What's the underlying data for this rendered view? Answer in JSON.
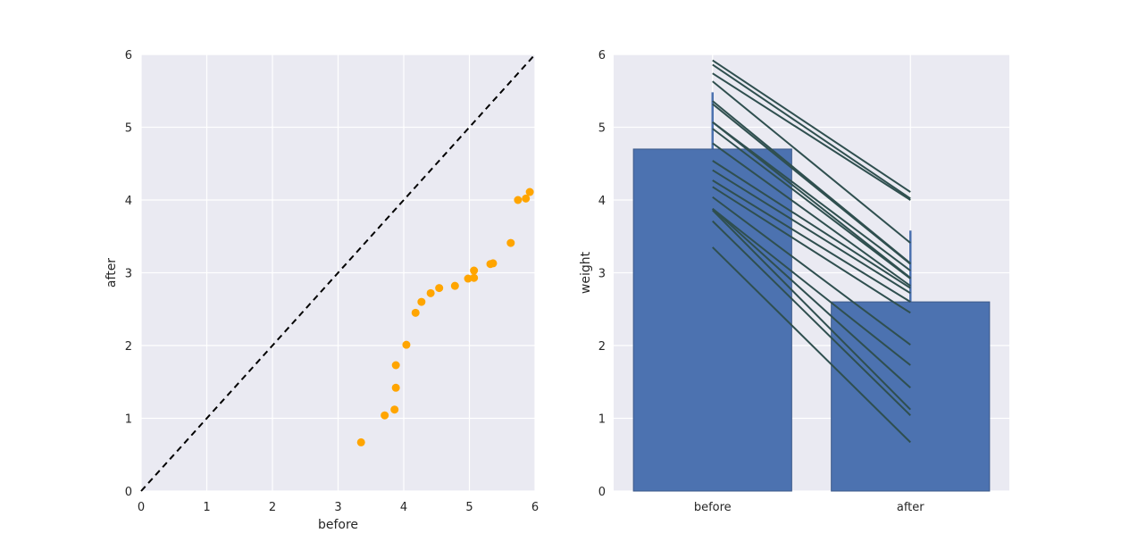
{
  "colors": {
    "background": "#EAEAF2",
    "grid": "#FFFFFF",
    "scatter": "#FFA500",
    "bar": "#4C72B0",
    "pair_line": "#2F4F4F",
    "identity_line": "#000000"
  },
  "chart_data": [
    {
      "type": "scatter",
      "xlabel": "before",
      "ylabel": "after",
      "xlim": [
        0,
        6
      ],
      "ylim": [
        0,
        6
      ],
      "xticks": [
        "0",
        "1",
        "2",
        "3",
        "4",
        "5",
        "6"
      ],
      "yticks": [
        "0",
        "1",
        "2",
        "3",
        "4",
        "5",
        "6"
      ],
      "grid": true,
      "reference_line": {
        "style": "dashed",
        "from": [
          0,
          0
        ],
        "to": [
          6,
          6
        ]
      },
      "points": [
        {
          "x": 3.35,
          "y": 0.67
        },
        {
          "x": 3.71,
          "y": 1.04
        },
        {
          "x": 3.86,
          "y": 1.12
        },
        {
          "x": 3.88,
          "y": 1.42
        },
        {
          "x": 3.88,
          "y": 1.73
        },
        {
          "x": 4.04,
          "y": 2.01
        },
        {
          "x": 4.18,
          "y": 2.45
        },
        {
          "x": 4.27,
          "y": 2.6
        },
        {
          "x": 4.41,
          "y": 2.72
        },
        {
          "x": 4.54,
          "y": 2.79
        },
        {
          "x": 4.78,
          "y": 2.82
        },
        {
          "x": 4.98,
          "y": 2.92
        },
        {
          "x": 5.07,
          "y": 2.93
        },
        {
          "x": 5.07,
          "y": 3.03
        },
        {
          "x": 5.32,
          "y": 3.12
        },
        {
          "x": 5.36,
          "y": 3.13
        },
        {
          "x": 5.63,
          "y": 3.41
        },
        {
          "x": 5.74,
          "y": 4.0
        },
        {
          "x": 5.86,
          "y": 4.02
        },
        {
          "x": 5.92,
          "y": 4.11
        }
      ]
    },
    {
      "type": "bar",
      "categories": [
        "before",
        "after"
      ],
      "values": [
        4.7,
        2.6
      ],
      "error_upper": [
        5.48,
        3.58
      ],
      "ylabel": "weight",
      "ylim": [
        0,
        6
      ],
      "yticks": [
        "0",
        "1",
        "2",
        "3",
        "4",
        "5",
        "6"
      ],
      "grid": true,
      "paired_lines": "each point of the scatter connected from before to after"
    }
  ]
}
